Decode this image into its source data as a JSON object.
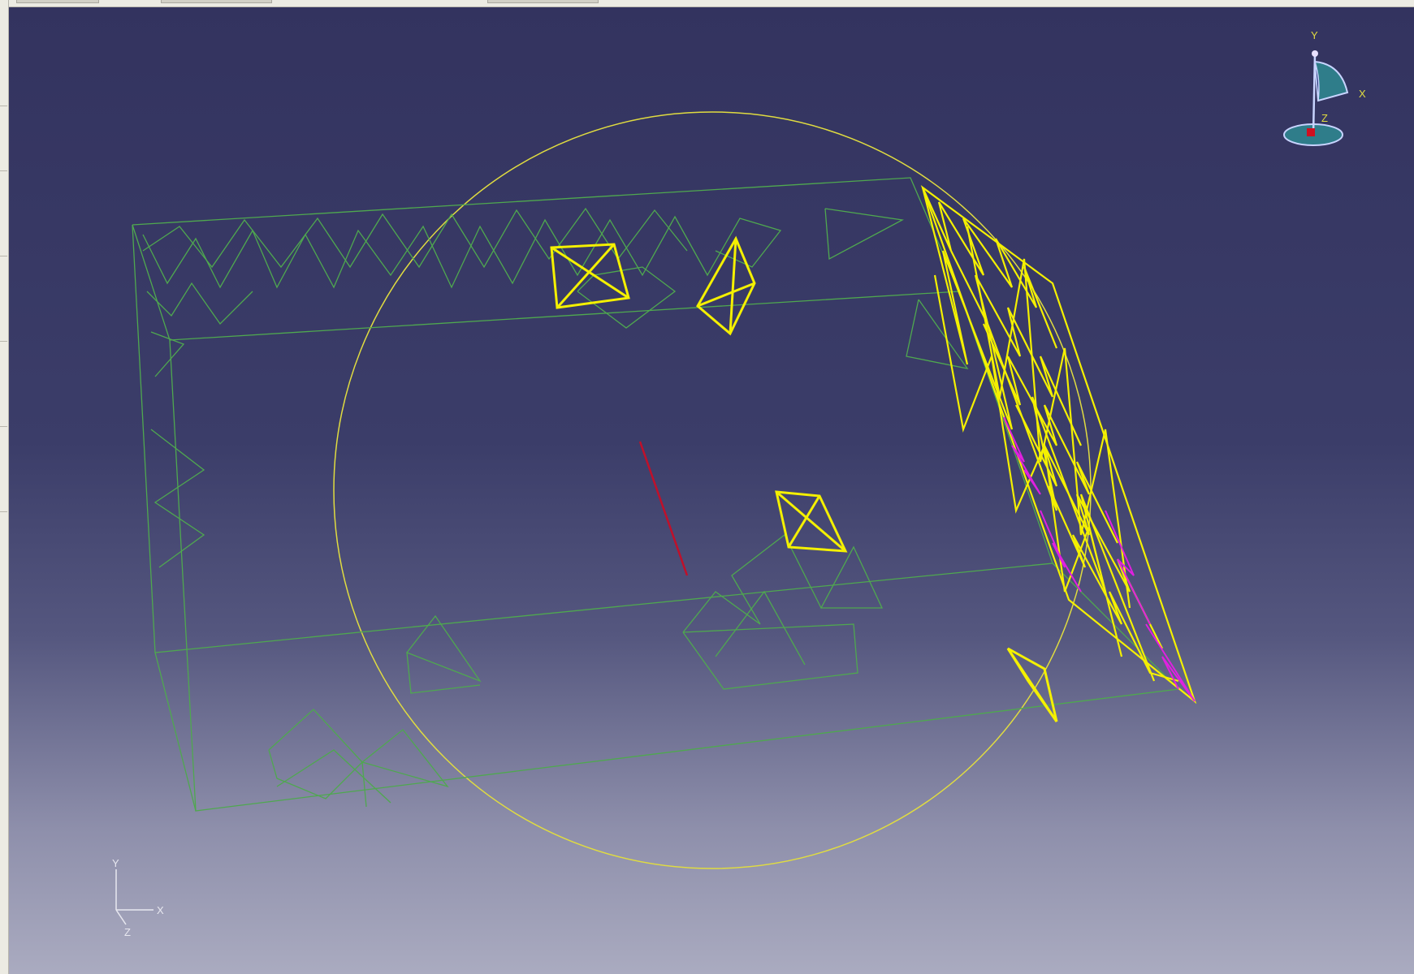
{
  "viewport": {
    "background_top": "#33335f",
    "background_bottom": "#aaabc0",
    "colors": {
      "wireframe": "#4fa84f",
      "selected": "#f4f000",
      "highlight": "#e020e0",
      "sphere": "#e0dc40",
      "axis_line": "#c0102a"
    }
  },
  "compass": {
    "icon": "compass-icon",
    "label_y": "Y",
    "label_x": "X",
    "label_z": "Z"
  },
  "triad": {
    "icon": "axis-triad-icon",
    "label_y": "Y",
    "label_x": "X",
    "label_z": "Z"
  }
}
